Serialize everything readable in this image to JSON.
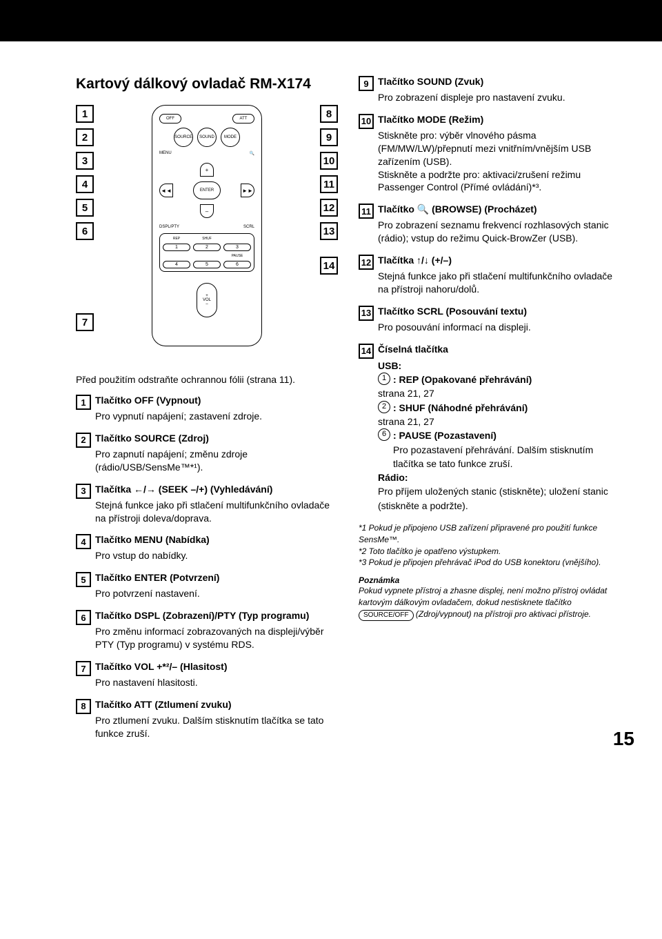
{
  "title": "Kartový dálkový ovladač RM-X174",
  "intro": "Před použitím odstraňte ochrannou fólii (strana 11).",
  "remote": {
    "off": "OFF",
    "att": "ATT",
    "source": "SOURCE",
    "sound": "SOUND",
    "mode": "MODE",
    "menu": "MENU",
    "enter": "ENTER",
    "dspl": "DSPL/PTY",
    "scrl": "SCRL",
    "rep": "REP",
    "shuf": "SHUF",
    "pause": "PAUSE",
    "vol": "VOL",
    "n1": "1",
    "n2": "2",
    "n3": "3",
    "n4": "4",
    "n5": "5",
    "n6": "6"
  },
  "left_items": [
    {
      "n": "1",
      "t": "Tlačítko OFF (Vypnout)",
      "d": "Pro vypnutí napájení; zastavení zdroje."
    },
    {
      "n": "2",
      "t": "Tlačítko SOURCE (Zdroj)",
      "d": "Pro zapnutí napájení; změnu zdroje (rádio/USB/SensMe™*¹)."
    },
    {
      "n": "3",
      "t": "Tlačítka ←/→ (SEEK –/+) (Vyhledávání)",
      "d": "Stejná funkce jako při stlačení multifunkčního ovladače na přístroji doleva/doprava."
    },
    {
      "n": "4",
      "t": "Tlačítko MENU (Nabídka)",
      "d": "Pro vstup do nabídky."
    },
    {
      "n": "5",
      "t": "Tlačítko ENTER (Potvrzení)",
      "d": "Pro potvrzení nastavení."
    },
    {
      "n": "6",
      "t": "Tlačítko DSPL (Zobrazení)/PTY (Typ programu)",
      "d": "Pro změnu informací zobrazovaných na displeji/výběr PTY (Typ programu) v systému RDS."
    },
    {
      "n": "7",
      "t": "Tlačítko VOL +*²/– (Hlasitost)",
      "d": "Pro nastavení hlasitosti."
    },
    {
      "n": "8",
      "t": "Tlačítko ATT (Ztlumení zvuku)",
      "d": "Pro ztlumení zvuku. Dalším stisknutím tlačítka se tato funkce zruší."
    }
  ],
  "right_items": [
    {
      "n": "9",
      "t": "Tlačítko SOUND (Zvuk)",
      "d": "Pro zobrazení displeje pro nastavení zvuku."
    },
    {
      "n": "10",
      "t": "Tlačítko MODE (Režim)",
      "d": "Stiskněte pro: výběr vlnového pásma (FM/MW/LW)/přepnutí mezi vnitřním/vnějším USB zařízením (USB).\nStiskněte a podržte pro: aktivaci/zrušení režimu Passenger Control (Přímé ovládání)*³."
    },
    {
      "n": "11",
      "t": "Tlačítko 🔍 (BROWSE) (Procházet)",
      "d": "Pro zobrazení seznamu frekvencí rozhlasových stanic (rádio); vstup do režimu Quick-BrowZer (USB)."
    },
    {
      "n": "12",
      "t": "Tlačítka ↑/↓ (+/–)",
      "d": "Stejná funkce jako při stlačení multifunkčního ovladače na přístroji nahoru/dolů."
    },
    {
      "n": "13",
      "t": "Tlačítko SCRL (Posouvání textu)",
      "d": "Pro posouvání informací na displeji."
    }
  ],
  "item14_num": "14",
  "item14_title": "Číselná tlačítka",
  "item14": {
    "usb_heading": "USB:",
    "btn1": "1",
    "btn1_text": ": REP (Opakované přehrávání)",
    "btn1_page": "strana 21, 27",
    "btn2": "2",
    "btn2_text": ": SHUF (Náhodné přehrávání)",
    "btn2_page": "strana 21, 27",
    "btn6": "6",
    "btn6_text": ": PAUSE (Pozastavení)",
    "btn6_desc": "Pro pozastavení přehrávání. Dalším stisknutím tlačítka se tato funkce zruší.",
    "radio_heading": "Rádio:",
    "radio_desc": "Pro příjem uložených stanic (stiskněte); uložení stanic (stiskněte a podržte)."
  },
  "footnotes": {
    "f1": "*1 Pokud je připojeno USB zařízení připravené pro použití funkce SensMe™.",
    "f2": "*2 Toto tlačítko je opatřeno výstupkem.",
    "f3": "*3 Pokud je připojen přehrávač iPod do USB konektoru (vnějšího)."
  },
  "note": {
    "heading": "Poznámka",
    "body_pre": "Pokud vypnete přístroj a zhasne displej, není možno přístroj ovládat kartovým dálkovým ovladačem, dokud nestisknete tlačítko ",
    "button": "SOURCE/OFF",
    "body_post": " (Zdroj/vypnout) na přístroji pro aktivaci přístroje."
  },
  "page_number": "15"
}
